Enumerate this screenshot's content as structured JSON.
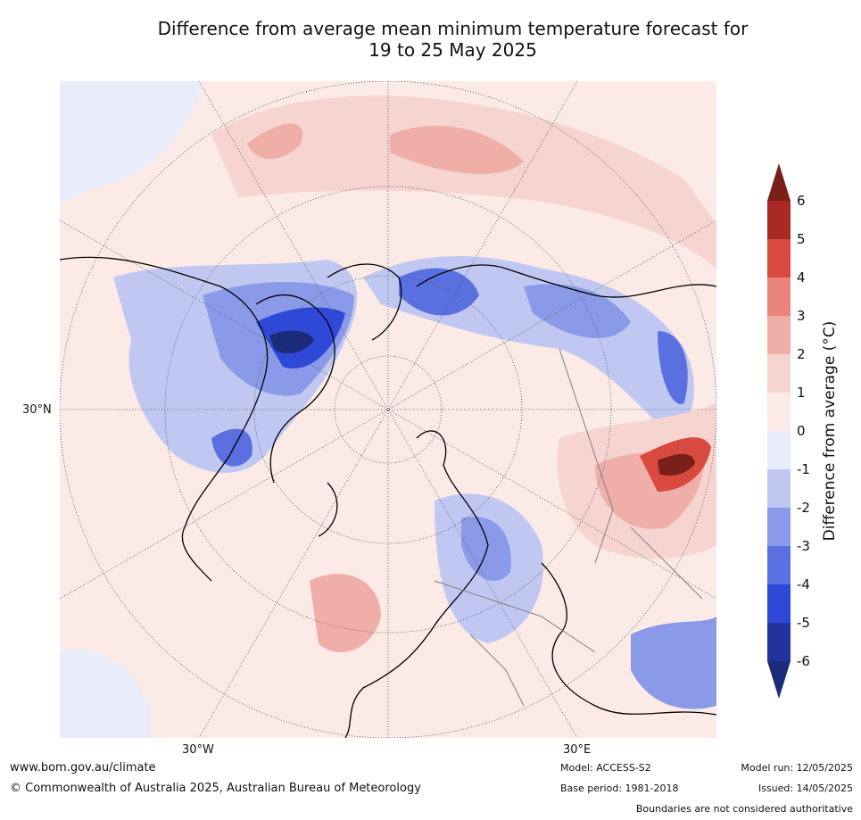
{
  "title": {
    "line1": "Difference from average mean minimum temperature forecast for",
    "line2": "19 to 25 May 2025"
  },
  "map": {
    "lat_label": "30°N",
    "lon_labels": [
      "30°W",
      "30°E"
    ],
    "projection": "north polar stereographic",
    "anomaly_regions": [
      {
        "region": "Arctic Canada / Greenland",
        "anomaly_c": "-2 to -6"
      },
      {
        "region": "Eastern Europe",
        "anomaly_c": "-1 to -3"
      },
      {
        "region": "Northern Siberia",
        "anomaly_c": "-1 to -4"
      },
      {
        "region": "Central Asia",
        "anomaly_c": "+3 to +6"
      },
      {
        "region": "North Atlantic",
        "anomaly_c": "0 to +2"
      }
    ]
  },
  "colorbar": {
    "label": "Difference from average (°C)",
    "ticks": [
      "6",
      "5",
      "4",
      "3",
      "2",
      "1",
      "0",
      "-1",
      "-2",
      "-3",
      "-4",
      "-5",
      "-6"
    ],
    "colors": [
      "#7a1f1a",
      "#a92a25",
      "#d84a3f",
      "#e8847a",
      "#efaea8",
      "#f6d4d0",
      "#fbeae6",
      "#e8ecfb",
      "#c0c8f2",
      "#8a9ae8",
      "#5a6fe0",
      "#2e48d8",
      "#23339e",
      "#1c2a7a"
    ]
  },
  "footer": {
    "url": "www.bom.gov.au/climate",
    "copyright": "© Commonwealth of Australia 2025, Australian Bureau of Meteorology",
    "model": "Model: ACCESS-S2",
    "base_period": "Base period: 1981-2018",
    "model_run": "Model run: 12/05/2025",
    "issued": "Issued: 14/05/2025",
    "disclaimer": "Boundaries are not considered authoritative"
  }
}
